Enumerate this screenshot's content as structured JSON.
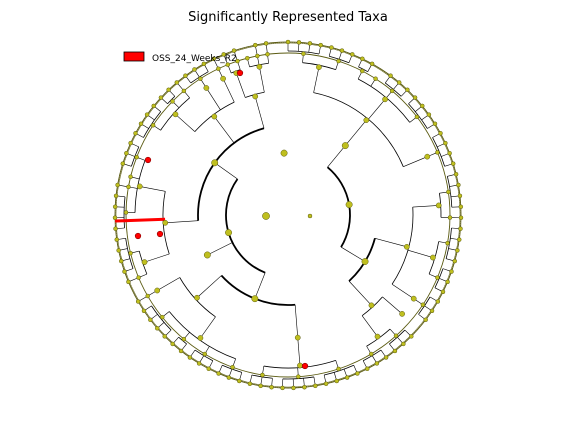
{
  "title": "Significantly Represented Taxa",
  "legend": [
    {
      "label": "OSS_24_Weeks_R2",
      "color": "#ff0000"
    }
  ],
  "colors": {
    "node_default": "#bfbf1f",
    "node_edge": "#5a5a10",
    "highlight": "#ff0000",
    "highlight_dark": "#8b0000",
    "line": "#000000",
    "leaf_line": "#3a3a3a"
  }
}
